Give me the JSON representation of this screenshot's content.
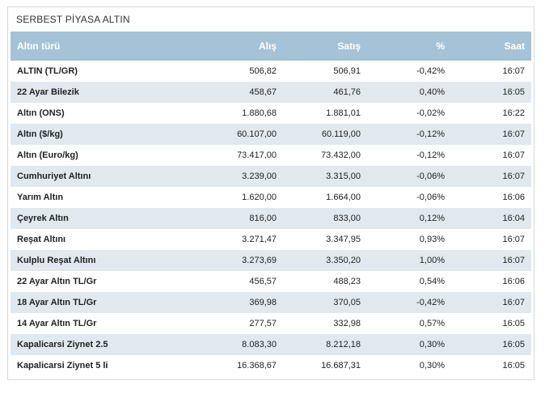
{
  "panel": {
    "title": "SERBEST PİYASA ALTIN"
  },
  "table": {
    "headers": [
      "Altın türü",
      "Alış",
      "Satış",
      "%",
      "Saat"
    ],
    "rows": [
      [
        "ALTIN (TL/GR)",
        "506,82",
        "506,91",
        "-0,42%",
        "16:07"
      ],
      [
        "22 Ayar Bilezik",
        "458,67",
        "461,76",
        "0,40%",
        "16:05"
      ],
      [
        "Altın (ONS)",
        "1.880,68",
        "1.881,01",
        "-0,02%",
        "16:22"
      ],
      [
        "Altın ($/kg)",
        "60.107,00",
        "60.119,00",
        "-0,12%",
        "16:07"
      ],
      [
        "Altın (Euro/kg)",
        "73.417,00",
        "73.432,00",
        "-0,12%",
        "16:07"
      ],
      [
        "Cumhuriyet Altını",
        "3.239,00",
        "3.315,00",
        "-0,06%",
        "16:07"
      ],
      [
        "Yarım Altın",
        "1.620,00",
        "1.664,00",
        "-0,06%",
        "16:06"
      ],
      [
        "Çeyrek Altın",
        "816,00",
        "833,00",
        "0,12%",
        "16:04"
      ],
      [
        "Reşat Altını",
        "3.271,47",
        "3.347,95",
        "0,93%",
        "16:07"
      ],
      [
        "Kulplu Reşat Altını",
        "3.273,69",
        "3.350,20",
        "1,00%",
        "16:07"
      ],
      [
        "22 Ayar Altın TL/Gr",
        "456,57",
        "488,23",
        "0,54%",
        "16:06"
      ],
      [
        "18 Ayar Altın TL/Gr",
        "369,98",
        "370,05",
        "-0,42%",
        "16:07"
      ],
      [
        "14 Ayar Altın TL/Gr",
        "277,57",
        "332,98",
        "0,57%",
        "16:05"
      ],
      [
        "Kapalicarsi Ziynet 2.5",
        "8.083,30",
        "8.212,18",
        "0,30%",
        "16:05"
      ],
      [
        "Kapalicarsi Ziynet 5 li",
        "16.368,67",
        "16.687,31",
        "0,30%",
        "16:05"
      ]
    ]
  },
  "colors": {
    "header_bg": "#a5c3d6",
    "stripe_bg": "#e1e9ee"
  }
}
